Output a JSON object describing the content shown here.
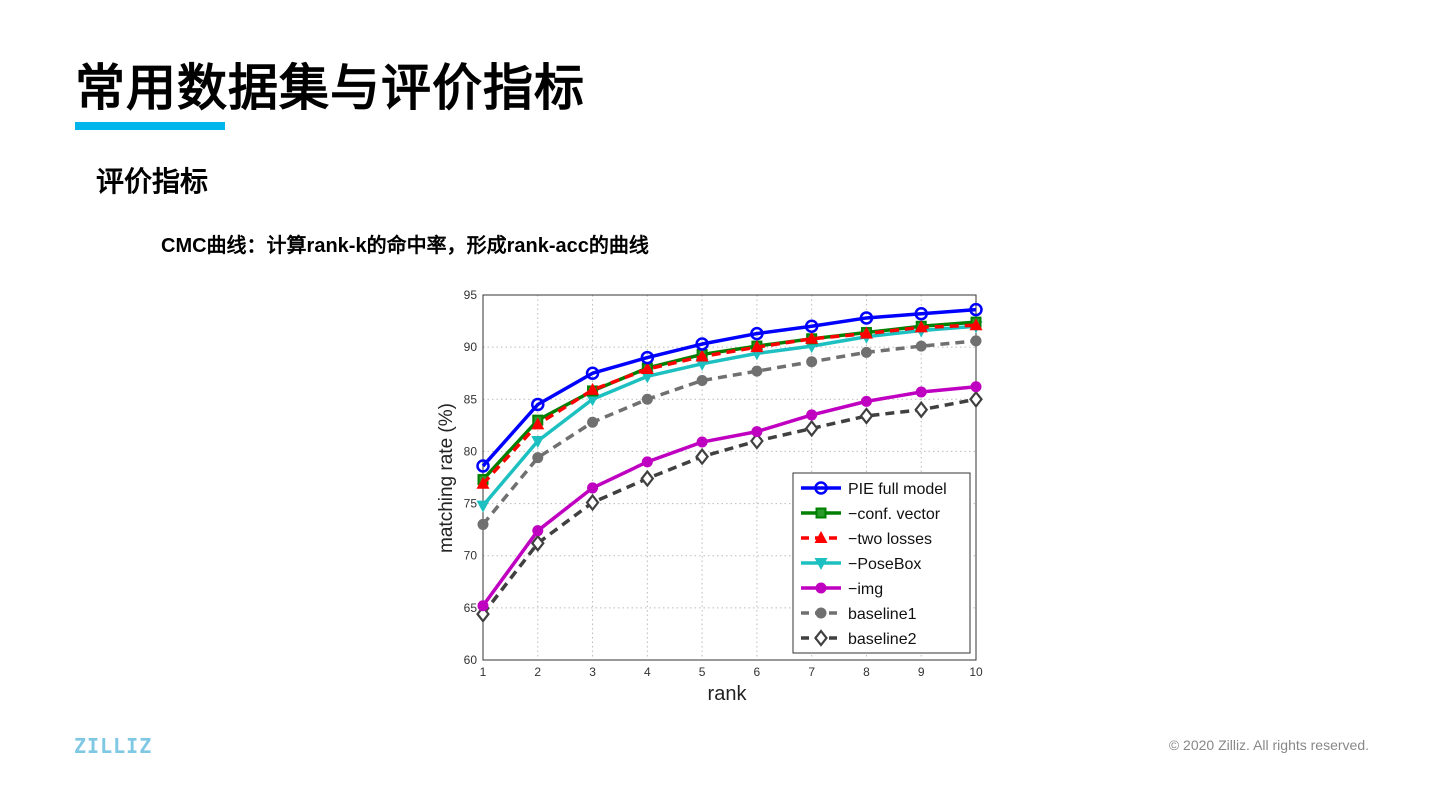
{
  "slide": {
    "title": "常用数据集与评价指标",
    "subtitle": "评价指标",
    "description": "CMC曲线：计算rank-k的命中率，形成rank-acc的曲线",
    "logo": "ZILLIZ",
    "copyright": "© 2020 Zilliz. All rights reserved.",
    "accent_color": "#00b4ec"
  },
  "chart_data": {
    "type": "line",
    "title": "",
    "xlabel": "rank",
    "ylabel": "matching rate (%)",
    "x": [
      1,
      2,
      3,
      4,
      5,
      6,
      7,
      8,
      9,
      10
    ],
    "xlim": [
      1,
      10
    ],
    "ylim": [
      60,
      95
    ],
    "yticks": [
      60,
      65,
      70,
      75,
      80,
      85,
      90,
      95
    ],
    "grid": true,
    "legend_position": "bottom-right",
    "series": [
      {
        "name": "PIE full model",
        "color": "#0000ff",
        "dash": false,
        "marker": "circle-open",
        "values": [
          78.6,
          84.5,
          87.5,
          89.0,
          90.3,
          91.3,
          92.0,
          92.8,
          93.2,
          93.6
        ]
      },
      {
        "name": "−conf. vector",
        "color": "#008000",
        "dash": false,
        "marker": "square",
        "values": [
          77.3,
          83.0,
          85.8,
          88.0,
          89.3,
          90.1,
          90.8,
          91.4,
          92.0,
          92.4
        ]
      },
      {
        "name": "−two losses",
        "color": "#ff0000",
        "dash": true,
        "marker": "triangle-up",
        "values": [
          76.9,
          82.6,
          85.9,
          87.9,
          89.1,
          90.0,
          90.8,
          91.3,
          91.9,
          92.1
        ]
      },
      {
        "name": "−PoseBox",
        "color": "#1cc0c0",
        "dash": false,
        "marker": "triangle-down",
        "values": [
          74.8,
          81.0,
          85.0,
          87.2,
          88.4,
          89.4,
          90.1,
          91.0,
          91.6,
          92.0
        ]
      },
      {
        "name": "−img",
        "color": "#c000c0",
        "dash": false,
        "marker": "circle-filled",
        "values": [
          65.2,
          72.4,
          76.5,
          79.0,
          80.9,
          81.9,
          83.5,
          84.8,
          85.7,
          86.2
        ]
      },
      {
        "name": "baseline1",
        "color": "#707070",
        "dash": true,
        "marker": "hexagon",
        "values": [
          73.0,
          79.4,
          82.8,
          85.0,
          86.8,
          87.7,
          88.6,
          89.5,
          90.1,
          90.6
        ]
      },
      {
        "name": "baseline2",
        "color": "#404040",
        "dash": true,
        "marker": "diamond",
        "values": [
          64.4,
          71.2,
          75.1,
          77.4,
          79.5,
          81.0,
          82.2,
          83.4,
          84.0,
          85.0
        ]
      }
    ]
  }
}
